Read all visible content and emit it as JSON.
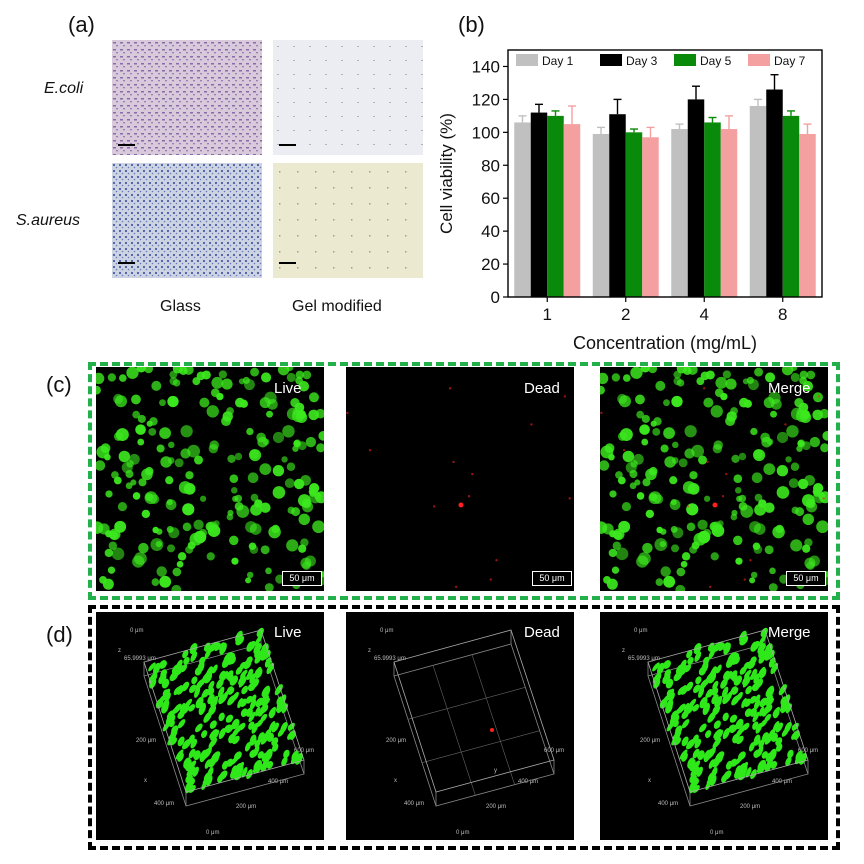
{
  "panel_a": {
    "label": "(a)",
    "rows": [
      "E.coli",
      "S.aureus"
    ],
    "cols": [
      "Glass",
      "Gel modified"
    ]
  },
  "panel_b": {
    "label": "(b)"
  },
  "panel_c": {
    "label": "(c)",
    "titles": [
      "Live",
      "Dead",
      "Merge"
    ],
    "scale": "50 μm"
  },
  "panel_d": {
    "label": "(d)",
    "titles": [
      "Live",
      "Dead",
      "Merge"
    ],
    "z_label": "z",
    "z_values": [
      "0 μm",
      "65.9993 μm"
    ],
    "x_label": "x",
    "x_values": [
      "200 μm",
      "400 μm"
    ],
    "y_label": "y",
    "y_values": [
      "0 μm",
      "200 μm",
      "400 μm",
      "600 μm"
    ]
  },
  "colors": {
    "green": "#22b04b",
    "cell": "#3ce81e",
    "dead": "#ff2020"
  },
  "chart_data": {
    "type": "bar",
    "categories": [
      "1",
      "2",
      "4",
      "8"
    ],
    "series": [
      {
        "name": "Day 1",
        "color": "#c0c0c0",
        "values": [
          106,
          99,
          102,
          116
        ],
        "errors": [
          4,
          4,
          3,
          4
        ]
      },
      {
        "name": "Day 3",
        "color": "#000000",
        "values": [
          112,
          111,
          120,
          126
        ],
        "errors": [
          5,
          9,
          8,
          9
        ]
      },
      {
        "name": "Day 5",
        "color": "#0a8a0a",
        "values": [
          110,
          100,
          106,
          110
        ],
        "errors": [
          3,
          2,
          3,
          3
        ]
      },
      {
        "name": "Day 7",
        "color": "#f4a0a0",
        "values": [
          105,
          97,
          102,
          99
        ],
        "errors": [
          11,
          6,
          8,
          6
        ]
      }
    ],
    "xlabel": "Concentration (mg/mL)",
    "ylabel": "Cell viability (%)",
    "ylim": [
      0,
      150
    ],
    "yticks": [
      0,
      20,
      40,
      60,
      80,
      100,
      120,
      140
    ],
    "legend": "top"
  }
}
